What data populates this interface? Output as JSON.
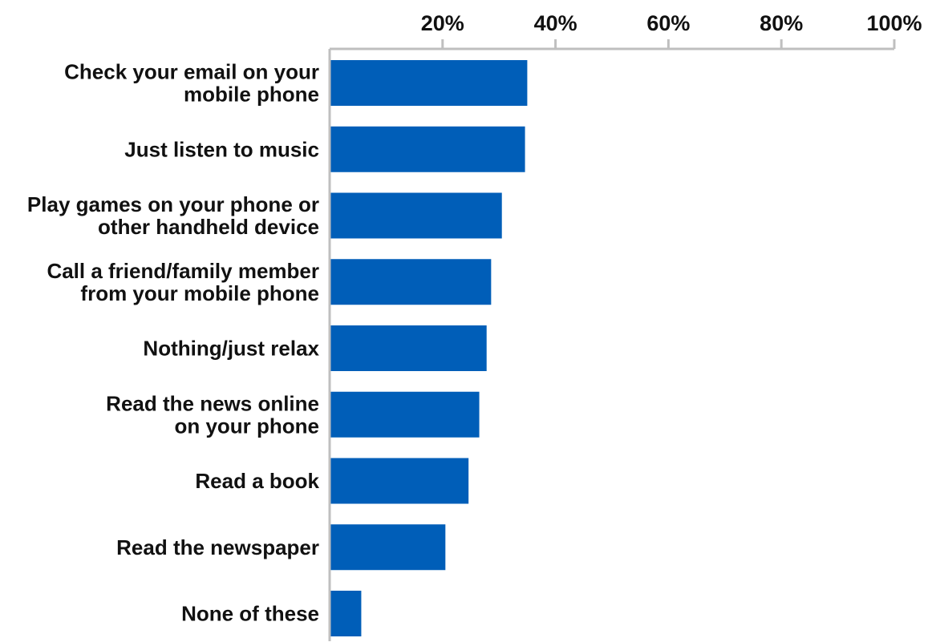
{
  "chart_data": {
    "type": "bar",
    "orientation": "horizontal",
    "title": "",
    "xlabel": "",
    "ylabel": "",
    "xlim": [
      0,
      100
    ],
    "x_ticks": [
      20,
      40,
      60,
      80,
      100
    ],
    "x_tick_labels": [
      "20%",
      "40%",
      "60%",
      "80%",
      "100%"
    ],
    "x_axis_position": "top",
    "grid": false,
    "legend": "none",
    "bar_color": "#005eb8",
    "axis_color": "#bfbfbf",
    "categories": [
      [
        "Check your email on your",
        "mobile phone"
      ],
      [
        "Just listen to music"
      ],
      [
        "Play games on your phone or",
        "other handheld device"
      ],
      [
        "Call a friend/family member",
        "from your mobile phone"
      ],
      [
        "Nothing/just relax"
      ],
      [
        "Read the news online",
        "on your phone"
      ],
      [
        "Read a book"
      ],
      [
        "Read the newspaper"
      ],
      [
        "None of these"
      ]
    ],
    "values": [
      35,
      34.6,
      30.5,
      28.6,
      27.8,
      26.5,
      24.6,
      20.5,
      5.6
    ]
  }
}
